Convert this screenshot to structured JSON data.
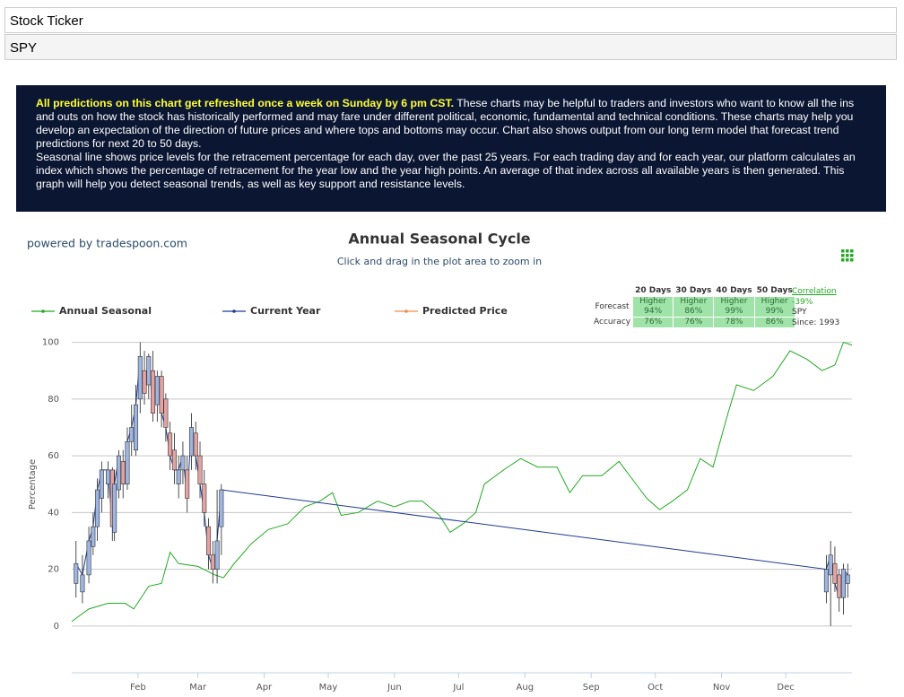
{
  "header": {
    "ticker_label": "Stock Ticker",
    "ticker_value": "SPY"
  },
  "notice": {
    "highlight": "All predictions on this chart get refreshed once a week on Sunday by 6 pm CST.",
    "text": " These charts may be helpful to traders and investors who want to know all the ins and outs on how the stock has historically performed and may fare under different political, economic, fundamental and technical conditions. These charts may help you develop an expectation of the direction of future prices and where tops and bottoms may occur. Chart also shows output from our long term model that forecast trend predictions for next 20 to 50 days.",
    "text2": "Seasonal line shows price levels for the retracement percentage for each day, over the past 25 years. For each trading day and for each year, our platform calculates an index which shows the percentage of retracement for the year low and the year high points. An average of that index across all available years is then generated. This graph will help you detect seasonal trends, as well as key support and resistance levels."
  },
  "forecast_table": {
    "headers": [
      "20 Days",
      "30 Days",
      "40 Days",
      "50 Days"
    ],
    "row_labels": [
      "Forecast",
      "Accuracy"
    ],
    "direction": [
      "Higher",
      "Higher",
      "Higher",
      "Higher"
    ],
    "forecast": [
      "94%",
      "86%",
      "99%",
      "99%"
    ],
    "accuracy": [
      "76%",
      "76%",
      "78%",
      "86%"
    ],
    "correlation_label": "Correlation",
    "correlation": "-39%",
    "symbol": "SPY",
    "since": "Since: 1993"
  },
  "chart_data": {
    "type": "line",
    "powered_by": "powered by tradespoon.com",
    "title": "Annual Seasonal Cycle",
    "subtitle": "Click and drag in the plot area to zoom in",
    "y_label": "Percentage",
    "xlim": [
      0,
      365
    ],
    "xticks": [
      {
        "value": 31,
        "label": "Feb"
      },
      {
        "value": 59,
        "label": "Mar"
      },
      {
        "value": 90,
        "label": "Apr"
      },
      {
        "value": 120,
        "label": "May"
      },
      {
        "value": 151,
        "label": "Jun"
      },
      {
        "value": 181,
        "label": "Jul"
      },
      {
        "value": 212,
        "label": "Aug"
      },
      {
        "value": 243,
        "label": "Sep"
      },
      {
        "value": 273,
        "label": "Oct"
      },
      {
        "value": 304,
        "label": "Nov"
      },
      {
        "value": 334,
        "label": "Dec"
      }
    ],
    "ylim": [
      -16.5,
      100.5
    ],
    "yticks": [
      0,
      20,
      40,
      60,
      80,
      100
    ],
    "grid": true,
    "series": [
      {
        "name": "Annual Seasonal",
        "color": "#22aa22",
        "x": [
          0,
          8,
          17,
          25,
          29,
          36,
          42,
          46,
          50,
          59,
          67,
          71,
          76,
          84,
          92,
          101,
          109,
          116,
          122,
          126,
          134,
          143,
          151,
          158,
          164,
          172,
          177,
          183,
          189,
          193,
          202,
          210,
          218,
          227,
          233,
          239,
          248,
          256,
          262,
          269,
          275,
          281,
          288,
          294,
          300,
          307,
          311,
          319,
          328,
          336,
          344,
          351,
          357,
          361,
          365
        ],
        "values": [
          1.6,
          6,
          8,
          8,
          6,
          14,
          15,
          26,
          22,
          21,
          18,
          17,
          22,
          29,
          34,
          36,
          42,
          44,
          47,
          39,
          40,
          44,
          42,
          44,
          44,
          39,
          33,
          36,
          40,
          50,
          55,
          59,
          56,
          56,
          47,
          53,
          53,
          58,
          52,
          45,
          41,
          44,
          48,
          59,
          56,
          75,
          85,
          83,
          88,
          97,
          94,
          90,
          92,
          100,
          99
        ]
      },
      {
        "name": "Current Year",
        "color": "#1f3a93",
        "type": "candlestick",
        "up_color": "#9db5e0",
        "down_color": "#e3a3a3",
        "x": [
          2,
          5,
          8,
          10,
          12,
          14,
          17,
          19,
          20,
          22,
          24,
          26,
          28,
          30,
          32,
          34,
          36,
          38,
          40,
          42,
          44,
          46,
          48,
          50,
          52,
          54,
          56,
          58,
          60,
          62,
          64,
          66,
          68,
          70,
          353,
          355,
          357,
          359,
          361,
          363
        ],
        "open": [
          15,
          12,
          18,
          28,
          35,
          45,
          50,
          55,
          33,
          48,
          58,
          50,
          65,
          62,
          80,
          90,
          85,
          90,
          78,
          88,
          80,
          68,
          62,
          50,
          55,
          55,
          60,
          68,
          60,
          50,
          35,
          25,
          20,
          35,
          12,
          18,
          22,
          18,
          10,
          15
        ],
        "high": [
          30,
          25,
          35,
          40,
          52,
          58,
          58,
          56,
          55,
          62,
          62,
          70,
          78,
          85,
          100,
          97,
          96,
          97,
          90,
          90,
          82,
          72,
          68,
          60,
          65,
          60,
          75,
          72,
          65,
          55,
          38,
          30,
          48,
          50,
          25,
          30,
          28,
          20,
          22,
          22
        ],
        "low": [
          10,
          8,
          15,
          25,
          30,
          40,
          45,
          30,
          30,
          45,
          45,
          48,
          60,
          60,
          75,
          78,
          80,
          72,
          72,
          70,
          65,
          55,
          50,
          45,
          50,
          40,
          55,
          55,
          45,
          35,
          20,
          15,
          15,
          25,
          8,
          0,
          12,
          5,
          4,
          10
        ],
        "close": [
          22,
          18,
          30,
          35,
          48,
          55,
          55,
          35,
          50,
          60,
          50,
          65,
          70,
          78,
          95,
          82,
          95,
          75,
          88,
          75,
          70,
          60,
          55,
          55,
          60,
          45,
          70,
          60,
          50,
          40,
          25,
          20,
          30,
          48,
          20,
          25,
          15,
          10,
          20,
          18
        ]
      },
      {
        "name": "Predicted Price",
        "color": "#f08a4b"
      }
    ]
  }
}
